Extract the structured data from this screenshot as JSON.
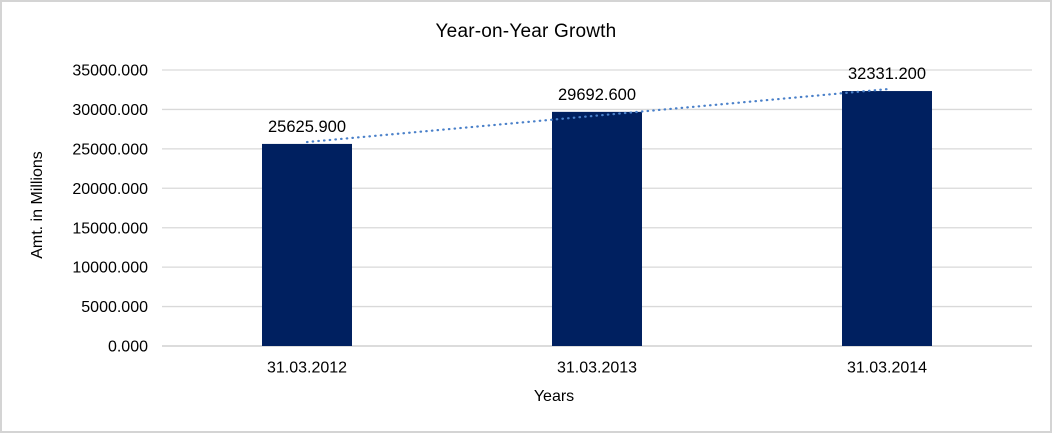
{
  "chart_data": {
    "type": "bar",
    "title": "Year-on-Year Growth",
    "xlabel": "Years",
    "ylabel": "Amt. in Millions",
    "categories": [
      "31.03.2012",
      "31.03.2013",
      "31.03.2014"
    ],
    "values": [
      25625.9,
      29692.6,
      32331.2
    ],
    "data_labels": [
      "25625.900",
      "29692.600",
      "32331.200"
    ],
    "ylim": [
      0,
      35000
    ],
    "ytick_step": 5000,
    "ytick_labels": [
      "0.000",
      "5000.000",
      "10000.000",
      "15000.000",
      "20000.000",
      "25000.000",
      "30000.000",
      "35000.000"
    ],
    "grid": true,
    "legend": "none",
    "trendline_type": "linear",
    "colors": {
      "bar": "#002060",
      "trendline": "#4a80c9",
      "gridline": "#d9d9d9",
      "axis_line": "#c6c6c6",
      "text": "#000000",
      "frame_border": "#d4d4d4"
    }
  }
}
